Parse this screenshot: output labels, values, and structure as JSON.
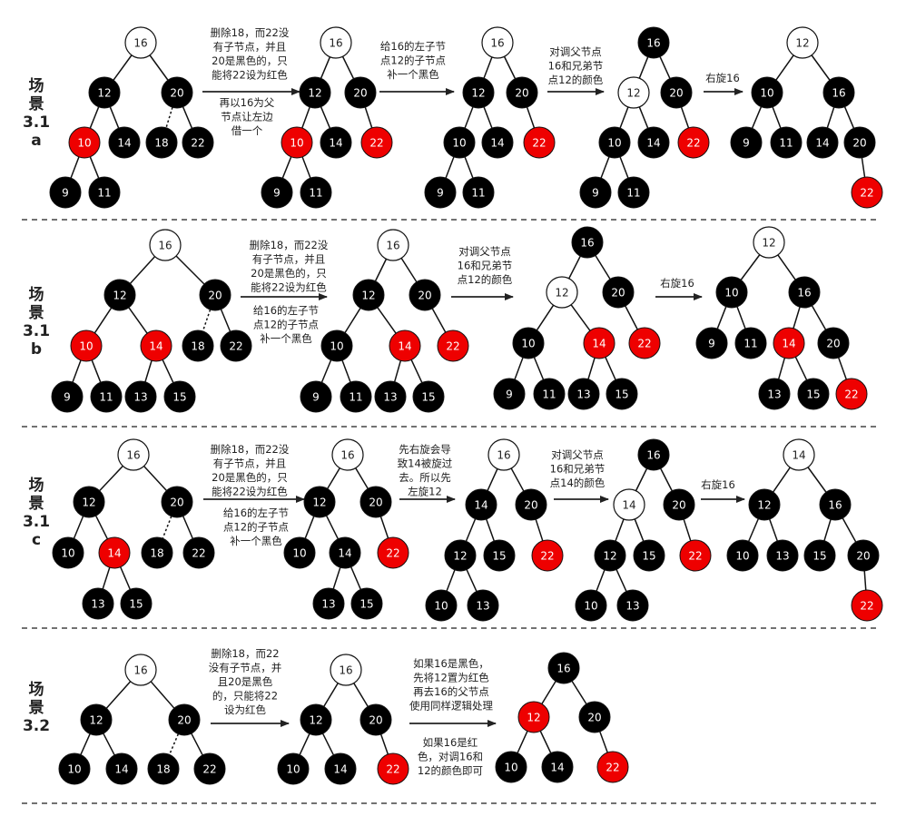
{
  "colors": {
    "black_node": "#000000",
    "red_node": "#ee0000",
    "white_node": "#ffffff",
    "edge": "#111111",
    "separator": "#444444"
  },
  "scenes": [
    {
      "label_lines": [
        "场",
        "景",
        "3.1",
        "a"
      ],
      "notes": [
        [
          "删除18，而22没",
          "有子节点，并且",
          "20是黑色的，只",
          "能将22设为红色"
        ],
        [
          "再以16为父",
          "节点让左边",
          "借一个"
        ],
        [
          "给16的左子节",
          "点12的子节点",
          "补一个黑色"
        ],
        [
          "对调父节点",
          "16和兄弟节",
          "点12的颜色"
        ],
        [
          "右旋16"
        ]
      ],
      "trees": [
        {
          "nodes": [
            {
              "id": "16",
              "c": "w"
            },
            {
              "id": "12",
              "c": "b"
            },
            {
              "id": "20",
              "c": "b"
            },
            {
              "id": "10",
              "c": "r"
            },
            {
              "id": "14",
              "c": "b"
            },
            {
              "id": "18",
              "c": "b"
            },
            {
              "id": "22",
              "c": "b"
            },
            {
              "id": "9",
              "c": "b"
            },
            {
              "id": "11",
              "c": "b"
            }
          ]
        },
        {
          "nodes": [
            {
              "id": "16",
              "c": "w"
            },
            {
              "id": "12",
              "c": "b"
            },
            {
              "id": "20",
              "c": "b"
            },
            {
              "id": "10",
              "c": "r"
            },
            {
              "id": "14",
              "c": "b"
            },
            {
              "id": "22",
              "c": "r"
            },
            {
              "id": "9",
              "c": "b"
            },
            {
              "id": "11",
              "c": "b"
            }
          ]
        },
        {
          "nodes": [
            {
              "id": "16",
              "c": "w"
            },
            {
              "id": "12",
              "c": "b"
            },
            {
              "id": "20",
              "c": "b"
            },
            {
              "id": "10",
              "c": "b"
            },
            {
              "id": "14",
              "c": "b"
            },
            {
              "id": "22",
              "c": "r"
            },
            {
              "id": "9",
              "c": "b"
            },
            {
              "id": "11",
              "c": "b"
            }
          ]
        },
        {
          "nodes": [
            {
              "id": "16",
              "c": "b"
            },
            {
              "id": "12",
              "c": "w"
            },
            {
              "id": "20",
              "c": "b"
            },
            {
              "id": "10",
              "c": "b"
            },
            {
              "id": "14",
              "c": "b"
            },
            {
              "id": "22",
              "c": "r"
            },
            {
              "id": "9",
              "c": "b"
            },
            {
              "id": "11",
              "c": "b"
            }
          ]
        },
        {
          "nodes": [
            {
              "id": "12",
              "c": "w"
            },
            {
              "id": "10",
              "c": "b"
            },
            {
              "id": "16",
              "c": "b"
            },
            {
              "id": "9",
              "c": "b"
            },
            {
              "id": "11",
              "c": "b"
            },
            {
              "id": "14",
              "c": "b"
            },
            {
              "id": "20",
              "c": "b"
            },
            {
              "id": "22",
              "c": "r"
            }
          ]
        }
      ]
    },
    {
      "label_lines": [
        "场",
        "景",
        "3.1",
        "b"
      ],
      "notes": [
        [
          "删除18，而22没",
          "有子节点，并且",
          "20是黑色的，只",
          "能将22设为红色"
        ],
        [
          "给16的左子节",
          "点12的子节点",
          "补一个黑色"
        ],
        [
          "对调父节点",
          "16和兄弟节",
          "点12的颜色"
        ],
        [
          "右旋16"
        ]
      ],
      "trees": [
        {
          "nodes": [
            {
              "id": "16",
              "c": "w"
            },
            {
              "id": "12",
              "c": "b"
            },
            {
              "id": "20",
              "c": "b"
            },
            {
              "id": "10",
              "c": "r"
            },
            {
              "id": "14",
              "c": "r"
            },
            {
              "id": "18",
              "c": "b"
            },
            {
              "id": "22",
              "c": "b"
            },
            {
              "id": "9",
              "c": "b"
            },
            {
              "id": "11",
              "c": "b"
            },
            {
              "id": "13",
              "c": "b"
            },
            {
              "id": "15",
              "c": "b"
            }
          ]
        },
        {
          "nodes": [
            {
              "id": "16",
              "c": "w"
            },
            {
              "id": "12",
              "c": "b"
            },
            {
              "id": "20",
              "c": "b"
            },
            {
              "id": "10",
              "c": "b"
            },
            {
              "id": "14",
              "c": "r"
            },
            {
              "id": "22",
              "c": "r"
            },
            {
              "id": "9",
              "c": "b"
            },
            {
              "id": "11",
              "c": "b"
            },
            {
              "id": "13",
              "c": "b"
            },
            {
              "id": "15",
              "c": "b"
            }
          ]
        },
        {
          "nodes": [
            {
              "id": "16",
              "c": "b"
            },
            {
              "id": "12",
              "c": "w"
            },
            {
              "id": "20",
              "c": "b"
            },
            {
              "id": "10",
              "c": "b"
            },
            {
              "id": "14",
              "c": "r"
            },
            {
              "id": "22",
              "c": "r"
            },
            {
              "id": "9",
              "c": "b"
            },
            {
              "id": "11",
              "c": "b"
            },
            {
              "id": "13",
              "c": "b"
            },
            {
              "id": "15",
              "c": "b"
            }
          ]
        },
        {
          "nodes": [
            {
              "id": "12",
              "c": "w"
            },
            {
              "id": "10",
              "c": "b"
            },
            {
              "id": "16",
              "c": "b"
            },
            {
              "id": "9",
              "c": "b"
            },
            {
              "id": "11",
              "c": "b"
            },
            {
              "id": "14",
              "c": "r"
            },
            {
              "id": "20",
              "c": "b"
            },
            {
              "id": "13",
              "c": "b"
            },
            {
              "id": "15",
              "c": "b"
            },
            {
              "id": "22",
              "c": "r"
            }
          ]
        }
      ]
    },
    {
      "label_lines": [
        "场",
        "景",
        "3.1",
        "c"
      ],
      "notes": [
        [
          "删除18，而22没",
          "有子节点，并且",
          "20是黑色的，只",
          "能将22设为红色"
        ],
        [
          "给16的左子节",
          "点12的子节点",
          "补一个黑色"
        ],
        [
          "先右旋会导",
          "致14被旋过",
          "去。所以先",
          "左旋12"
        ],
        [
          "对调父节点",
          "16和兄弟节",
          "点14的颜色"
        ],
        [
          "右旋16"
        ]
      ],
      "trees": [
        {
          "nodes": [
            {
              "id": "16",
              "c": "w"
            },
            {
              "id": "12",
              "c": "b"
            },
            {
              "id": "20",
              "c": "b"
            },
            {
              "id": "10",
              "c": "b"
            },
            {
              "id": "14",
              "c": "r"
            },
            {
              "id": "18",
              "c": "b"
            },
            {
              "id": "22",
              "c": "b"
            },
            {
              "id": "13",
              "c": "b"
            },
            {
              "id": "15",
              "c": "b"
            }
          ]
        },
        {
          "nodes": [
            {
              "id": "16",
              "c": "w"
            },
            {
              "id": "12",
              "c": "b"
            },
            {
              "id": "20",
              "c": "b"
            },
            {
              "id": "10",
              "c": "b"
            },
            {
              "id": "14",
              "c": "b"
            },
            {
              "id": "22",
              "c": "r"
            },
            {
              "id": "13",
              "c": "b"
            },
            {
              "id": "15",
              "c": "b"
            }
          ]
        },
        {
          "nodes": [
            {
              "id": "16",
              "c": "w"
            },
            {
              "id": "14",
              "c": "b"
            },
            {
              "id": "20",
              "c": "b"
            },
            {
              "id": "12",
              "c": "b"
            },
            {
              "id": "15",
              "c": "b"
            },
            {
              "id": "22",
              "c": "r"
            },
            {
              "id": "10",
              "c": "b"
            },
            {
              "id": "13",
              "c": "b"
            }
          ]
        },
        {
          "nodes": [
            {
              "id": "16",
              "c": "b"
            },
            {
              "id": "14",
              "c": "w"
            },
            {
              "id": "20",
              "c": "b"
            },
            {
              "id": "12",
              "c": "b"
            },
            {
              "id": "15",
              "c": "b"
            },
            {
              "id": "22",
              "c": "r"
            },
            {
              "id": "10",
              "c": "b"
            },
            {
              "id": "13",
              "c": "b"
            }
          ]
        },
        {
          "nodes": [
            {
              "id": "14",
              "c": "w"
            },
            {
              "id": "12",
              "c": "b"
            },
            {
              "id": "16",
              "c": "b"
            },
            {
              "id": "10",
              "c": "b"
            },
            {
              "id": "13",
              "c": "b"
            },
            {
              "id": "15",
              "c": "b"
            },
            {
              "id": "20",
              "c": "b"
            },
            {
              "id": "22",
              "c": "r"
            }
          ]
        }
      ]
    },
    {
      "label_lines": [
        "场",
        "景",
        "3.2"
      ],
      "notes": [
        [
          "删除18，而22",
          "没有子节点，并",
          "且20是黑色",
          "的，只能将22",
          "设为红色"
        ],
        [
          "如果16是黑色，",
          "先将12置为红色",
          "再去16的父节点",
          "使用同样逻辑处理"
        ],
        [
          "如果16是红",
          "色，对调16和",
          "12的颜色即可"
        ]
      ],
      "trees": [
        {
          "nodes": [
            {
              "id": "16",
              "c": "w"
            },
            {
              "id": "12",
              "c": "b"
            },
            {
              "id": "20",
              "c": "b"
            },
            {
              "id": "10",
              "c": "b"
            },
            {
              "id": "14",
              "c": "b"
            },
            {
              "id": "18",
              "c": "b"
            },
            {
              "id": "22",
              "c": "b"
            }
          ]
        },
        {
          "nodes": [
            {
              "id": "16",
              "c": "w"
            },
            {
              "id": "12",
              "c": "b"
            },
            {
              "id": "20",
              "c": "b"
            },
            {
              "id": "10",
              "c": "b"
            },
            {
              "id": "14",
              "c": "b"
            },
            {
              "id": "22",
              "c": "r"
            }
          ]
        },
        {
          "nodes": [
            {
              "id": "16",
              "c": "b"
            },
            {
              "id": "12",
              "c": "r"
            },
            {
              "id": "20",
              "c": "b"
            },
            {
              "id": "10",
              "c": "b"
            },
            {
              "id": "14",
              "c": "b"
            },
            {
              "id": "22",
              "c": "r"
            }
          ]
        }
      ]
    }
  ]
}
